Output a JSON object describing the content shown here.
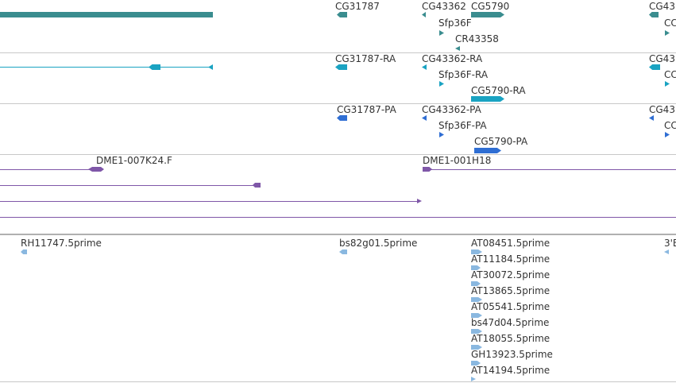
{
  "colors": {
    "gene": "#3a8d8f",
    "transcript": "#1aa3c2",
    "protein": "#2f6ed3",
    "clone": "#7f57a8",
    "est": "#8ab8e0",
    "separator": "#c8c8c8",
    "text": "#333333"
  },
  "genes": {
    "labels": [
      "CG31787",
      "CG43362",
      "CG5790",
      "CG43",
      "Sfp36F",
      "CR43358",
      "CC"
    ]
  },
  "transcripts": {
    "labels": [
      "CG31787-RA",
      "CG43362-RA",
      "CG43",
      "Sfp36F-RA",
      "CC",
      "CG5790-RA"
    ]
  },
  "proteins": {
    "labels": [
      "CG31787-PA",
      "CG43362-PA",
      "CG43",
      "Sfp36F-PA",
      "CC",
      "CG5790-PA"
    ]
  },
  "clones": {
    "labels": [
      "DME1-007K24.F",
      "DME1-001H18"
    ]
  },
  "ests": {
    "labels": [
      "RH11747.5prime",
      "bs82g01.5prime",
      "AT08451.5prime",
      "3'E",
      "AT11184.5prime",
      "AT30072.5prime",
      "AT13865.5prime",
      "AT05541.5prime",
      "bs47d04.5prime",
      "AT18055.5prime",
      "GH13923.5prime",
      "AT14194.5prime"
    ]
  }
}
